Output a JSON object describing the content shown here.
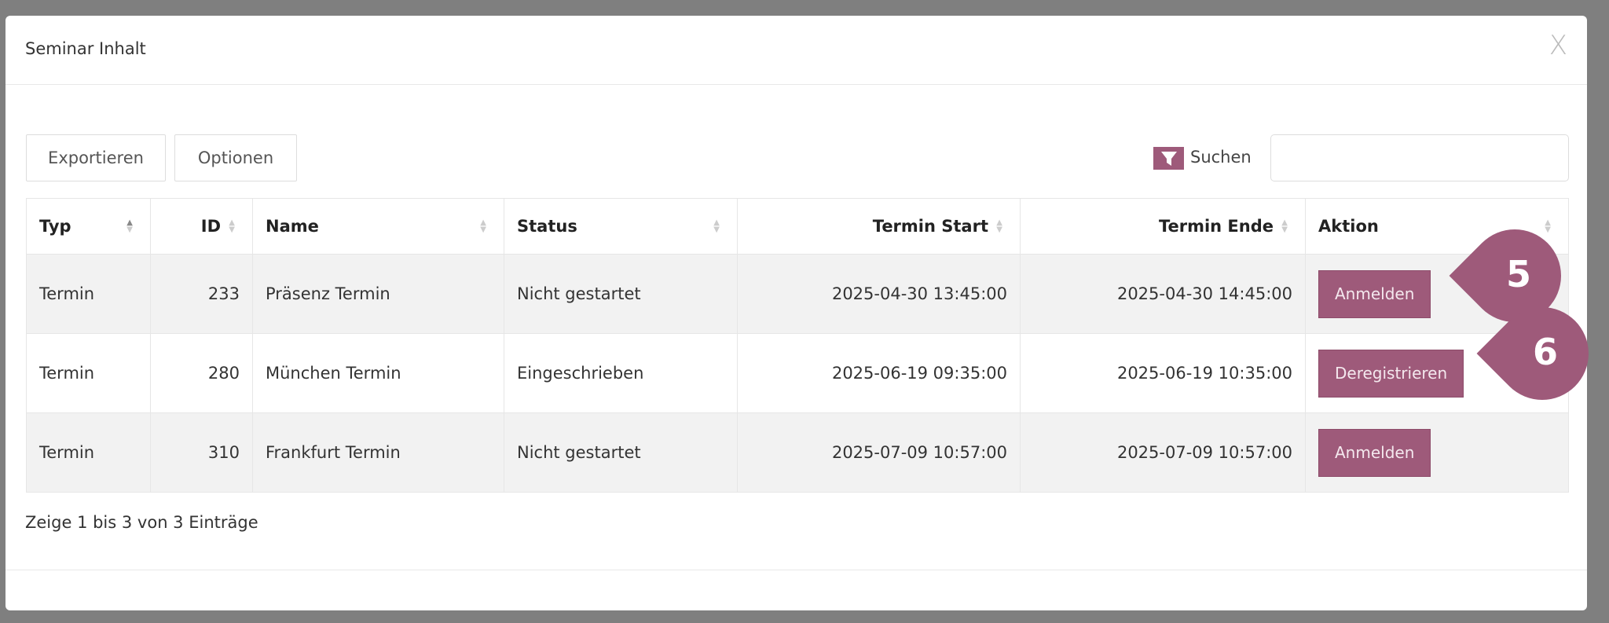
{
  "modal": {
    "title": "Seminar Inhalt",
    "close": "X"
  },
  "toolbar": {
    "export_label": "Exportieren",
    "options_label": "Optionen",
    "search_label": "Suchen",
    "search_value": ""
  },
  "table": {
    "columns": [
      "Typ",
      "ID",
      "Name",
      "Status",
      "Termin Start",
      "Termin Ende",
      "Aktion"
    ],
    "rows": [
      {
        "typ": "Termin",
        "id": "233",
        "name": "Präsenz Termin",
        "status": "Nicht gestartet",
        "start": "2025-04-30 13:45:00",
        "ende": "2025-04-30 14:45:00",
        "action": "Anmelden"
      },
      {
        "typ": "Termin",
        "id": "280",
        "name": "München Termin",
        "status": "Eingeschrieben",
        "start": "2025-06-19 09:35:00",
        "ende": "2025-06-19 10:35:00",
        "action": "Deregistrieren"
      },
      {
        "typ": "Termin",
        "id": "310",
        "name": "Frankfurt Termin",
        "status": "Nicht gestartet",
        "start": "2025-07-09 10:57:00",
        "ende": "2025-07-09 10:57:00",
        "action": "Anmelden"
      }
    ]
  },
  "footer": {
    "info": "Zeige 1 bis 3 von 3 Einträge"
  },
  "callouts": [
    "5",
    "6"
  ],
  "colors": {
    "accent": "#9e5a7a"
  }
}
